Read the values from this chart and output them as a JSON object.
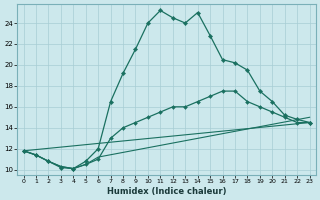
{
  "xlabel": "Humidex (Indice chaleur)",
  "bg_color": "#cce8ec",
  "grid_color": "#a8cdd4",
  "line_color": "#1a7060",
  "xlim": [
    -0.5,
    23.5
  ],
  "ylim": [
    9.5,
    25.8
  ],
  "xticks": [
    0,
    1,
    2,
    3,
    4,
    5,
    6,
    7,
    8,
    9,
    10,
    11,
    12,
    13,
    14,
    15,
    16,
    17,
    18,
    19,
    20,
    21,
    22,
    23
  ],
  "yticks": [
    10,
    12,
    14,
    16,
    18,
    20,
    22,
    24
  ],
  "curve1_x": [
    0,
    1,
    2,
    3,
    4,
    5,
    6,
    7,
    8,
    9,
    10,
    11,
    12,
    13,
    14,
    15,
    16,
    17,
    18,
    19,
    20,
    21,
    22,
    23
  ],
  "curve1_y": [
    11.8,
    11.4,
    10.8,
    10.2,
    10.1,
    10.8,
    12.0,
    16.5,
    19.2,
    21.5,
    24.0,
    25.2,
    24.5,
    24.0,
    25.0,
    22.8,
    20.5,
    20.2,
    19.5,
    17.5,
    16.5,
    15.2,
    14.8,
    14.5
  ],
  "curve2_x": [
    0,
    1,
    2,
    3,
    4,
    5,
    6,
    7,
    8,
    9,
    10,
    11,
    12,
    13,
    14,
    15,
    16,
    17,
    18,
    19,
    20,
    21,
    22,
    23
  ],
  "curve2_y": [
    11.8,
    11.4,
    10.8,
    10.3,
    10.1,
    10.5,
    11.0,
    13.0,
    14.0,
    14.5,
    15.0,
    15.5,
    16.0,
    16.0,
    16.5,
    17.0,
    17.5,
    17.5,
    16.5,
    16.0,
    15.5,
    15.0,
    14.5,
    14.5
  ],
  "curve3_x": [
    0,
    1,
    2,
    3,
    4,
    5,
    6,
    23
  ],
  "curve3_y": [
    11.8,
    11.4,
    10.8,
    10.3,
    10.1,
    10.5,
    11.2,
    15.0
  ],
  "curve4_x": [
    0,
    23
  ],
  "curve4_y": [
    11.8,
    14.5
  ]
}
